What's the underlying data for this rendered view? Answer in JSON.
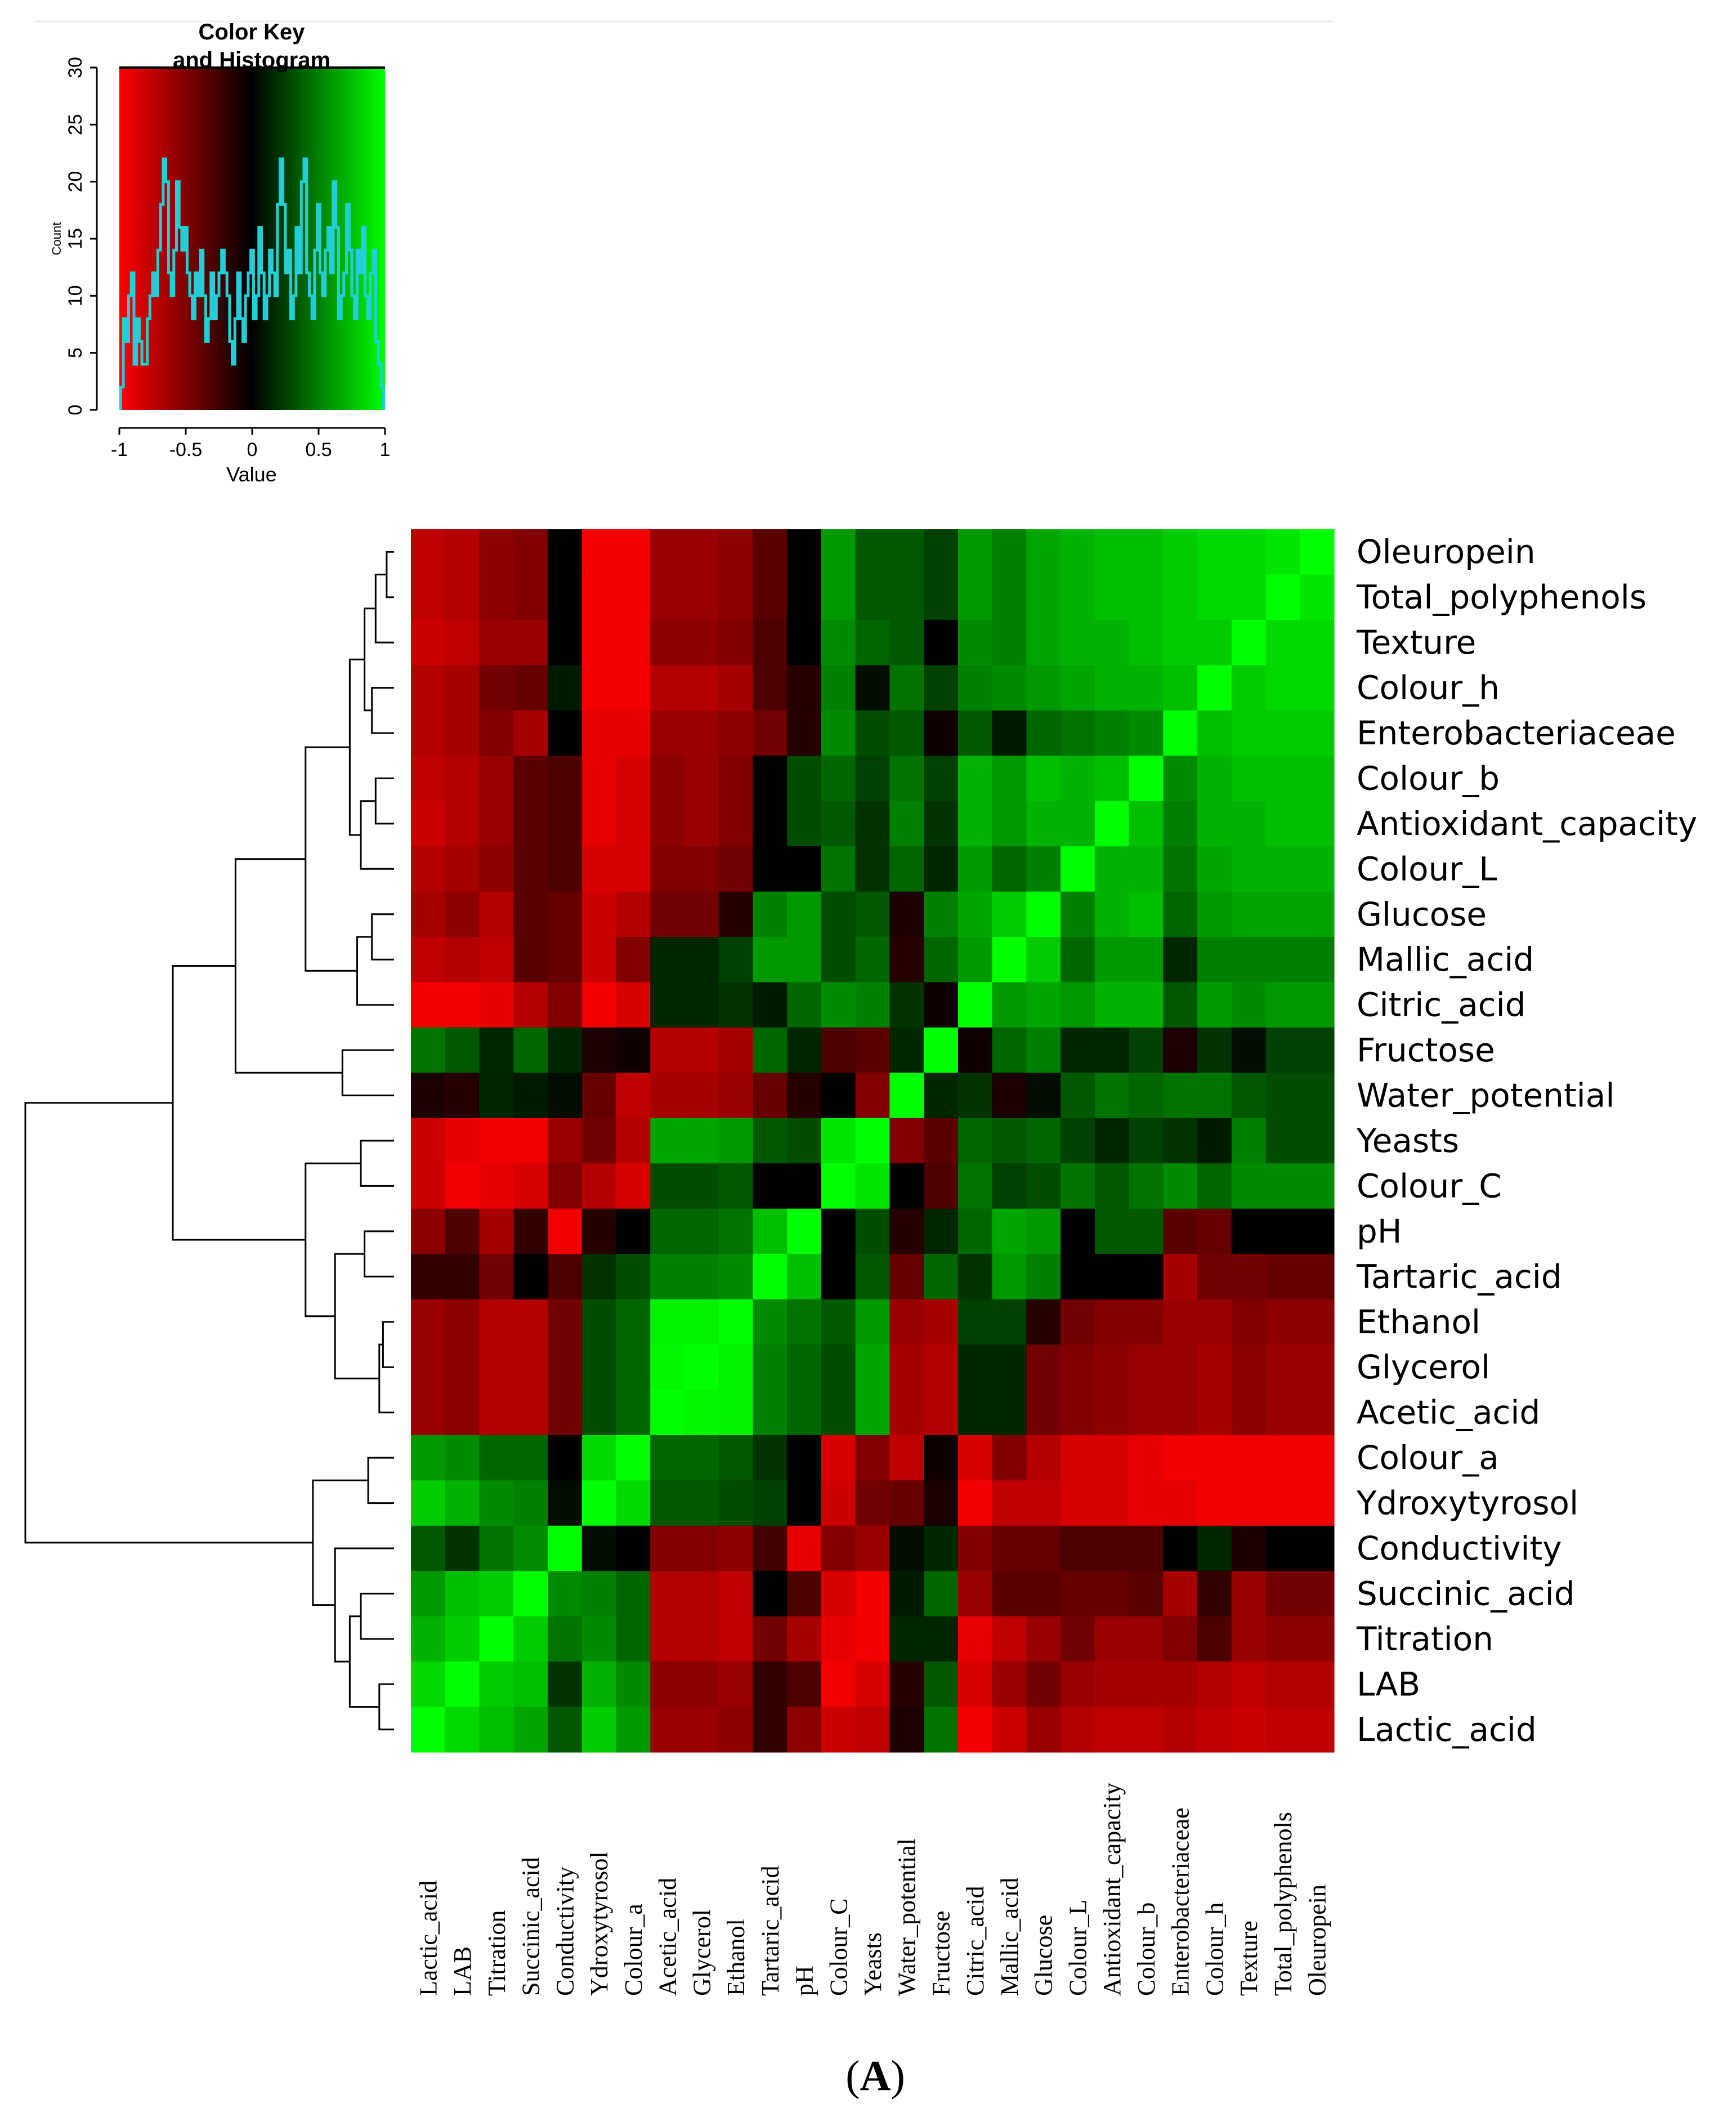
{
  "chart_data": {
    "type": "heatmap",
    "title": "",
    "row_labels": [
      "Oleuropein",
      "Total_polyphenols",
      "Texture",
      "Colour_h",
      "Enterobacteriaceae",
      "Colour_b",
      "Antioxidant_capacity",
      "Colour_L",
      "Glucose",
      "Mallic_acid",
      "Citric_acid",
      "Fructose",
      "Water_potential",
      "Yeasts",
      "Colour_C",
      "pH",
      "Tartaric_acid",
      "Ethanol",
      "Glycerol",
      "Acetic_acid",
      "Colour_a",
      "Ydroxytyrosol",
      "Conductivity",
      "Succinic_acid",
      "Titration",
      "LAB",
      "Lactic_acid"
    ],
    "col_labels": [
      "Lactic_acid",
      "LAB",
      "Titration",
      "Succinic_acid",
      "Conductivity",
      "Ydroxytyrosol",
      "Colour_a",
      "Acetic_acid",
      "Glycerol",
      "Ethanol",
      "Tartaric_acid",
      "pH",
      "Colour_C",
      "Yeasts",
      "Water_potential",
      "Fructose",
      "Citric_acid",
      "Mallic_acid",
      "Glucose",
      "Colour_L",
      "Antioxidant_capacity",
      "Colour_b",
      "Enterobacteriaceae",
      "Colour_h",
      "Texture",
      "Total_polyphenols",
      "Oleuropein"
    ],
    "values": [
      [
        -0.75,
        -0.7,
        -0.55,
        -0.5,
        0,
        -0.95,
        -0.95,
        -0.6,
        -0.6,
        -0.55,
        -0.35,
        0,
        0.6,
        0.35,
        0.35,
        0.25,
        0.6,
        0.5,
        0.65,
        0.7,
        0.75,
        0.75,
        0.8,
        0.85,
        0.85,
        0.9,
        1
      ],
      [
        -0.75,
        -0.7,
        -0.55,
        -0.5,
        0,
        -0.95,
        -0.95,
        -0.6,
        -0.6,
        -0.55,
        -0.35,
        0,
        0.6,
        0.35,
        0.35,
        0.25,
        0.6,
        0.5,
        0.65,
        0.7,
        0.75,
        0.75,
        0.8,
        0.85,
        0.85,
        1,
        0.9
      ],
      [
        -0.8,
        -0.75,
        -0.6,
        -0.6,
        0,
        -0.95,
        -0.95,
        -0.55,
        -0.55,
        -0.5,
        -0.3,
        0,
        0.55,
        0.4,
        0.35,
        0,
        0.55,
        0.5,
        0.65,
        0.7,
        0.7,
        0.75,
        0.8,
        0.8,
        1,
        0.85,
        0.85
      ],
      [
        -0.7,
        -0.65,
        -0.45,
        -0.4,
        0.1,
        -0.95,
        -0.95,
        -0.7,
        -0.7,
        -0.65,
        -0.3,
        -0.15,
        0.5,
        0.05,
        0.45,
        0.25,
        0.5,
        0.55,
        0.6,
        0.65,
        0.7,
        0.7,
        0.75,
        1,
        0.8,
        0.85,
        0.85
      ],
      [
        -0.7,
        -0.65,
        -0.5,
        -0.65,
        0,
        -0.9,
        -0.9,
        -0.6,
        -0.6,
        -0.55,
        -0.45,
        -0.15,
        0.55,
        0.3,
        0.35,
        -0.05,
        0.35,
        0.1,
        0.4,
        0.45,
        0.5,
        0.55,
        1,
        0.75,
        0.8,
        0.8,
        0.8
      ],
      [
        -0.75,
        -0.7,
        -0.6,
        -0.35,
        -0.3,
        -0.9,
        -0.85,
        -0.55,
        -0.6,
        -0.5,
        0,
        0.3,
        0.4,
        0.25,
        0.45,
        0.25,
        0.7,
        0.6,
        0.75,
        0.7,
        0.75,
        1,
        0.55,
        0.7,
        0.75,
        0.75,
        0.75
      ],
      [
        -0.8,
        -0.7,
        -0.6,
        -0.35,
        -0.3,
        -0.9,
        -0.85,
        -0.55,
        -0.6,
        -0.5,
        0,
        0.3,
        0.35,
        0.2,
        0.5,
        0.2,
        0.7,
        0.6,
        0.7,
        0.7,
        1,
        0.75,
        0.5,
        0.7,
        0.7,
        0.75,
        0.75
      ],
      [
        -0.7,
        -0.65,
        -0.55,
        -0.35,
        -0.3,
        -0.85,
        -0.85,
        -0.5,
        -0.5,
        -0.45,
        0,
        0,
        0.45,
        0.2,
        0.4,
        0.15,
        0.6,
        0.4,
        0.5,
        1,
        0.7,
        0.7,
        0.45,
        0.65,
        0.7,
        0.7,
        0.7
      ],
      [
        -0.65,
        -0.55,
        -0.7,
        -0.35,
        -0.4,
        -0.8,
        -0.7,
        -0.45,
        -0.45,
        -0.15,
        0.5,
        0.6,
        0.3,
        0.35,
        -0.1,
        0.5,
        0.65,
        0.8,
        1,
        0.5,
        0.7,
        0.75,
        0.4,
        0.6,
        0.65,
        0.65,
        0.65
      ],
      [
        -0.75,
        -0.7,
        -0.75,
        -0.35,
        -0.4,
        -0.8,
        -0.5,
        0.15,
        0.15,
        0.25,
        0.6,
        0.6,
        0.3,
        0.4,
        -0.15,
        0.4,
        0.6,
        1,
        0.8,
        0.4,
        0.6,
        0.6,
        0.15,
        0.5,
        0.5,
        0.5,
        0.5
      ],
      [
        -0.95,
        -0.95,
        -0.9,
        -0.7,
        -0.5,
        -0.95,
        -0.85,
        0.15,
        0.15,
        0.2,
        0.1,
        0.4,
        0.55,
        0.5,
        0.2,
        -0.05,
        1,
        0.6,
        0.65,
        0.6,
        0.7,
        0.7,
        0.35,
        0.6,
        0.55,
        0.6,
        0.6
      ],
      [
        0.45,
        0.35,
        0.15,
        0.4,
        0.15,
        -0.1,
        -0.05,
        -0.7,
        -0.7,
        -0.65,
        0.4,
        0.15,
        -0.3,
        -0.35,
        0.15,
        1,
        -0.05,
        0.4,
        0.5,
        0.15,
        0.15,
        0.25,
        -0.1,
        0.2,
        0.05,
        0.25,
        0.25
      ],
      [
        -0.1,
        -0.15,
        0.15,
        0.1,
        0.05,
        -0.4,
        -0.75,
        -0.65,
        -0.65,
        -0.6,
        -0.4,
        -0.15,
        0,
        -0.5,
        1,
        0.15,
        0.2,
        -0.1,
        0.05,
        0.35,
        0.45,
        0.4,
        0.45,
        0.45,
        0.35,
        0.3,
        0.3
      ],
      [
        -0.8,
        -0.9,
        -0.95,
        -0.95,
        -0.6,
        -0.45,
        -0.7,
        0.65,
        0.65,
        0.6,
        0.35,
        0.3,
        0.9,
        1,
        -0.5,
        -0.35,
        0.4,
        0.35,
        0.4,
        0.25,
        0.15,
        0.25,
        0.2,
        0.1,
        0.5,
        0.3,
        0.3
      ],
      [
        -0.8,
        -0.95,
        -0.9,
        -0.85,
        -0.5,
        -0.7,
        -0.85,
        0.3,
        0.3,
        0.35,
        0,
        0,
        1,
        0.9,
        0,
        -0.3,
        0.45,
        0.25,
        0.3,
        0.45,
        0.35,
        0.45,
        0.55,
        0.4,
        0.55,
        0.55,
        0.55
      ],
      [
        -0.55,
        -0.3,
        -0.65,
        -0.2,
        -0.95,
        -0.15,
        0,
        0.4,
        0.4,
        0.45,
        0.75,
        1,
        0,
        0.3,
        -0.15,
        0.15,
        0.4,
        0.65,
        0.6,
        0,
        0.35,
        0.35,
        -0.35,
        -0.4,
        0,
        0,
        0
      ],
      [
        -0.2,
        -0.2,
        -0.45,
        0,
        -0.3,
        0.2,
        0.3,
        0.5,
        0.5,
        0.55,
        1,
        0.75,
        0,
        0.35,
        -0.4,
        0.4,
        0.2,
        0.6,
        0.5,
        0,
        0,
        0,
        -0.65,
        -0.45,
        -0.45,
        -0.4,
        -0.4
      ],
      [
        -0.6,
        -0.55,
        -0.7,
        -0.7,
        -0.45,
        0.3,
        0.4,
        0.95,
        0.95,
        1,
        0.55,
        0.45,
        0.35,
        0.6,
        -0.6,
        -0.65,
        0.25,
        0.25,
        -0.15,
        -0.45,
        -0.5,
        -0.5,
        -0.6,
        -0.6,
        -0.5,
        -0.55,
        -0.55
      ],
      [
        -0.6,
        -0.55,
        -0.7,
        -0.7,
        -0.45,
        0.3,
        0.4,
        0.97,
        1,
        0.95,
        0.5,
        0.4,
        0.3,
        0.65,
        -0.65,
        -0.7,
        0.15,
        0.15,
        -0.45,
        -0.5,
        -0.55,
        -0.6,
        -0.6,
        -0.65,
        -0.55,
        -0.6,
        -0.6
      ],
      [
        -0.6,
        -0.55,
        -0.7,
        -0.7,
        -0.45,
        0.3,
        0.4,
        1,
        0.97,
        0.95,
        0.5,
        0.4,
        0.3,
        0.65,
        -0.65,
        -0.7,
        0.15,
        0.15,
        -0.45,
        -0.5,
        -0.55,
        -0.6,
        -0.6,
        -0.65,
        -0.55,
        -0.6,
        -0.6
      ],
      [
        0.6,
        0.55,
        0.4,
        0.4,
        0,
        0.85,
        1,
        0.4,
        0.4,
        0.35,
        0.2,
        0,
        -0.85,
        -0.5,
        -0.75,
        -0.05,
        -0.85,
        -0.5,
        -0.7,
        -0.85,
        -0.85,
        -0.9,
        -0.95,
        -0.95,
        -0.95,
        -0.95,
        -0.95
      ],
      [
        0.8,
        0.7,
        0.55,
        0.5,
        0.05,
        1,
        0.85,
        0.35,
        0.35,
        0.3,
        0.25,
        0,
        -0.8,
        -0.45,
        -0.4,
        -0.1,
        -0.95,
        -0.75,
        -0.75,
        -0.85,
        -0.85,
        -0.9,
        -0.9,
        -0.95,
        -0.95,
        -0.95,
        -0.95
      ],
      [
        0.35,
        0.2,
        0.45,
        0.55,
        1,
        0.05,
        0,
        -0.5,
        -0.5,
        -0.55,
        -0.25,
        -0.9,
        -0.5,
        -0.6,
        0.05,
        0.15,
        -0.5,
        -0.4,
        -0.4,
        -0.3,
        -0.3,
        -0.3,
        0,
        0.15,
        -0.1,
        0,
        0
      ],
      [
        0.6,
        0.75,
        0.8,
        1,
        0.55,
        0.5,
        0.4,
        -0.7,
        -0.7,
        -0.75,
        0,
        -0.3,
        -0.85,
        -0.95,
        0.1,
        0.4,
        -0.6,
        -0.35,
        -0.35,
        -0.4,
        -0.4,
        -0.35,
        -0.65,
        -0.2,
        -0.6,
        -0.45,
        -0.45
      ],
      [
        0.7,
        0.8,
        1,
        0.8,
        0.45,
        0.55,
        0.4,
        -0.7,
        -0.7,
        -0.75,
        -0.45,
        -0.65,
        -0.9,
        -0.95,
        0.15,
        0.15,
        -0.9,
        -0.75,
        -0.6,
        -0.45,
        -0.6,
        -0.6,
        -0.5,
        -0.3,
        -0.6,
        -0.55,
        -0.55
      ],
      [
        0.85,
        1,
        0.8,
        0.75,
        0.2,
        0.7,
        0.55,
        -0.55,
        -0.55,
        -0.6,
        -0.2,
        -0.3,
        -0.95,
        -0.85,
        -0.15,
        0.35,
        -0.85,
        -0.6,
        -0.45,
        -0.6,
        -0.65,
        -0.65,
        -0.65,
        -0.7,
        -0.75,
        -0.7,
        -0.7
      ],
      [
        1,
        0.85,
        0.75,
        0.65,
        0.35,
        0.8,
        0.6,
        -0.6,
        -0.6,
        -0.55,
        -0.2,
        -0.55,
        -0.8,
        -0.75,
        -0.1,
        0.45,
        -0.95,
        -0.8,
        -0.6,
        -0.7,
        -0.75,
        -0.75,
        -0.7,
        -0.75,
        -0.8,
        -0.75,
        -0.75
      ]
    ],
    "color_scale": {
      "low": "#ff0000",
      "mid": "#000000",
      "high": "#00ff00",
      "range": [
        -1,
        1
      ]
    },
    "color_key": {
      "title_line1": "Color Key",
      "title_line2": "and Histogram",
      "xlabel": "Value",
      "ylabel": "Count",
      "x_ticks": [
        "-1",
        "-0.5",
        "0",
        "0.5",
        "1"
      ],
      "y_ticks": [
        "0",
        "5",
        "10",
        "15",
        "20",
        "25",
        "30"
      ],
      "ylim": [
        0,
        30
      ],
      "histogram_x": [
        -0.98,
        -0.96,
        -0.94,
        -0.92,
        -0.9,
        -0.88,
        -0.86,
        -0.84,
        -0.82,
        -0.8,
        -0.78,
        -0.76,
        -0.74,
        -0.72,
        -0.7,
        -0.68,
        -0.66,
        -0.64,
        -0.62,
        -0.6,
        -0.58,
        -0.56,
        -0.54,
        -0.52,
        -0.5,
        -0.48,
        -0.46,
        -0.44,
        -0.42,
        -0.4,
        -0.38,
        -0.36,
        -0.34,
        -0.32,
        -0.3,
        -0.28,
        -0.26,
        -0.24,
        -0.22,
        -0.2,
        -0.18,
        -0.16,
        -0.14,
        -0.12,
        -0.1,
        -0.08,
        -0.06,
        -0.04,
        -0.02,
        0,
        0.02,
        0.04,
        0.06,
        0.08,
        0.1,
        0.12,
        0.14,
        0.16,
        0.18,
        0.2,
        0.22,
        0.24,
        0.26,
        0.28,
        0.3,
        0.32,
        0.34,
        0.36,
        0.38,
        0.4,
        0.42,
        0.44,
        0.46,
        0.48,
        0.5,
        0.52,
        0.54,
        0.56,
        0.58,
        0.6,
        0.62,
        0.64,
        0.66,
        0.68,
        0.7,
        0.72,
        0.74,
        0.76,
        0.78,
        0.8,
        0.82,
        0.84,
        0.86,
        0.88,
        0.9,
        0.92,
        0.94,
        0.96,
        0.98
      ],
      "histogram_counts": [
        2,
        8,
        6,
        10,
        12,
        4,
        8,
        6,
        4,
        4,
        8,
        10,
        12,
        10,
        14,
        18,
        22,
        20,
        12,
        10,
        14,
        20,
        16,
        14,
        16,
        12,
        10,
        8,
        12,
        10,
        14,
        10,
        6,
        8,
        12,
        8,
        10,
        12,
        14,
        12,
        10,
        6,
        4,
        8,
        12,
        8,
        6,
        10,
        12,
        14,
        8,
        10,
        16,
        12,
        8,
        10,
        14,
        12,
        10,
        18,
        22,
        18,
        12,
        14,
        8,
        10,
        16,
        12,
        20,
        22,
        12,
        10,
        8,
        14,
        18,
        12,
        10,
        14,
        16,
        12,
        20,
        16,
        8,
        10,
        12,
        18,
        14,
        10,
        8,
        14,
        12,
        16,
        10,
        8,
        12,
        14,
        6,
        4,
        2
      ]
    },
    "row_dendrogram": {
      "leaf_order": "rows top-to-bottom",
      "levels": [
        0.02,
        0.03,
        0.05,
        0.06,
        0.08,
        0.1,
        0.12,
        0.15,
        0.18,
        0.22,
        0.3,
        0.45,
        0.6,
        1.0
      ]
    },
    "panel_label_open": "(",
    "panel_label_letter": "A",
    "panel_label_close": ")"
  }
}
